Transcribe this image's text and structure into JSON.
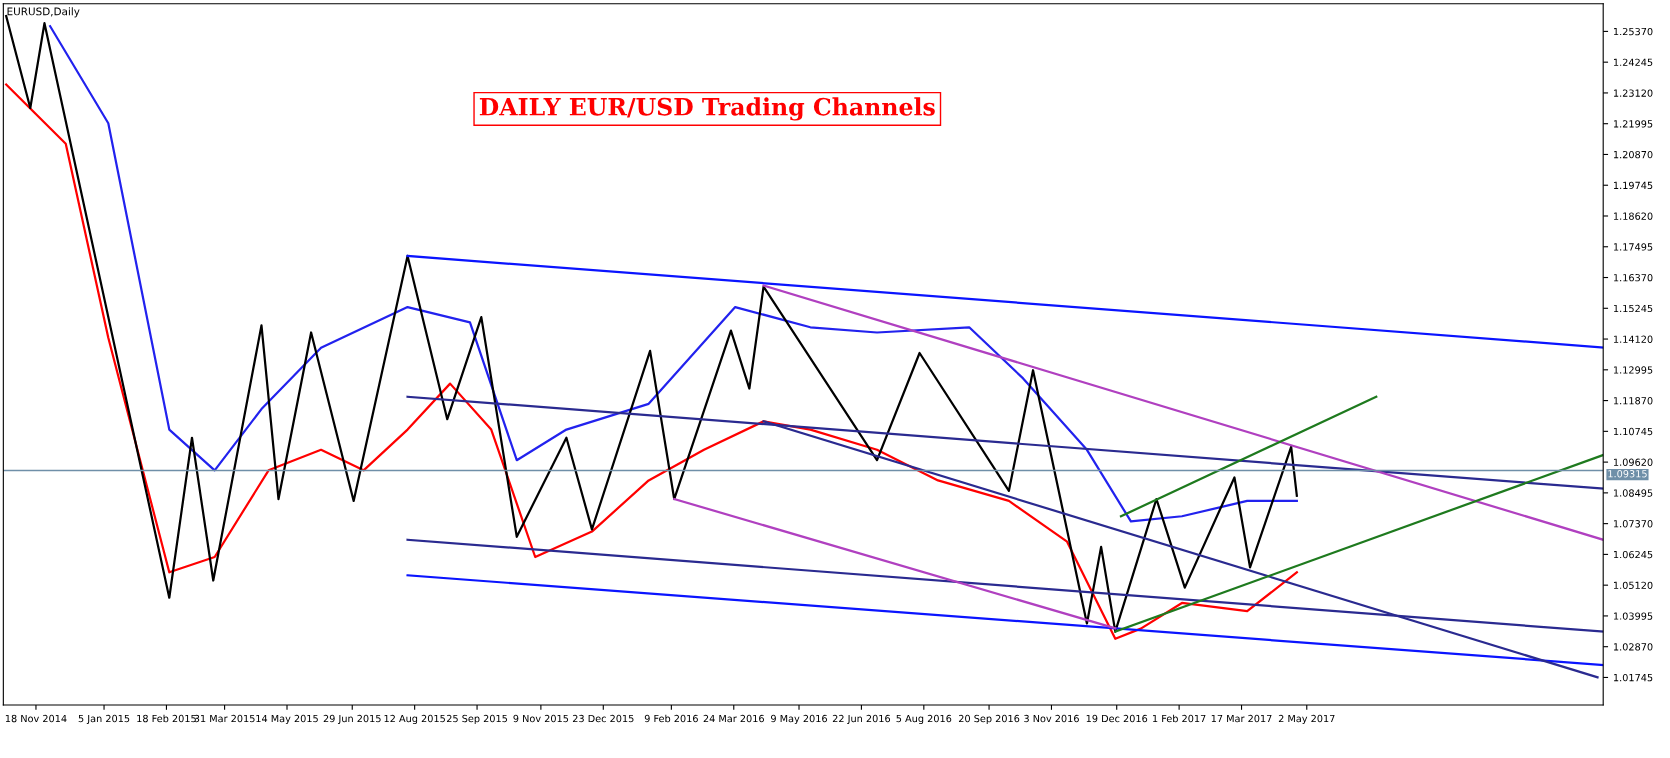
{
  "chart_data": {
    "type": "line",
    "title": "DAILY EUR/USD Trading Channels",
    "annotations": [
      "EURUSD,Daily"
    ],
    "xlim": [
      "2014-10-26",
      "2017-11-27"
    ],
    "ylim": [
      1.0074,
      1.2638
    ],
    "xticks": [
      {
        "value": "2014-11-18",
        "label": "18 Nov 2014"
      },
      {
        "value": "2015-01-05",
        "label": "5 Jan 2015"
      },
      {
        "value": "2015-02-18",
        "label": "18 Feb 2015"
      },
      {
        "value": "2015-03-31",
        "label": "31 Mar 2015"
      },
      {
        "value": "2015-05-14",
        "label": "14 May 2015"
      },
      {
        "value": "2015-06-29",
        "label": "29 Jun 2015"
      },
      {
        "value": "2015-08-12",
        "label": "12 Aug 2015"
      },
      {
        "value": "2015-09-25",
        "label": "25 Sep 2015"
      },
      {
        "value": "2015-11-09",
        "label": "9 Nov 2015"
      },
      {
        "value": "2015-12-23",
        "label": "23 Dec 2015"
      },
      {
        "value": "2016-02-09",
        "label": "9 Feb 2016"
      },
      {
        "value": "2016-03-24",
        "label": "24 Mar 2016"
      },
      {
        "value": "2016-05-09",
        "label": "9 May 2016"
      },
      {
        "value": "2016-06-22",
        "label": "22 Jun 2016"
      },
      {
        "value": "2016-08-05",
        "label": "5 Aug 2016"
      },
      {
        "value": "2016-09-20",
        "label": "20 Sep 2016"
      },
      {
        "value": "2016-11-03",
        "label": "3 Nov 2016"
      },
      {
        "value": "2016-12-19",
        "label": "19 Dec 2016"
      },
      {
        "value": "2017-02-01",
        "label": "1 Feb 2017"
      },
      {
        "value": "2017-03-17",
        "label": "17 Mar 2017"
      },
      {
        "value": "2017-05-02",
        "label": "2 May 2017"
      }
    ],
    "yticks": [
      {
        "value": 1.01745,
        "label": "1.01745"
      },
      {
        "value": 1.0287,
        "label": "1.02870"
      },
      {
        "value": 1.03995,
        "label": "1.03995"
      },
      {
        "value": 1.0512,
        "label": "1.05120"
      },
      {
        "value": 1.06245,
        "label": "1.06245"
      },
      {
        "value": 1.0737,
        "label": "1.07370"
      },
      {
        "value": 1.08495,
        "label": "1.08495"
      },
      {
        "value": 1.0962,
        "label": "1.09620"
      },
      {
        "value": 1.10745,
        "label": "1.10745"
      },
      {
        "value": 1.1187,
        "label": "1.11870"
      },
      {
        "value": 1.12995,
        "label": "1.12995"
      },
      {
        "value": 1.1412,
        "label": "1.14120"
      },
      {
        "value": 1.15245,
        "label": "1.15245"
      },
      {
        "value": 1.1637,
        "label": "1.16370"
      },
      {
        "value": 1.17495,
        "label": "1.17495"
      },
      {
        "value": 1.1862,
        "label": "1.18620"
      },
      {
        "value": 1.19745,
        "label": "1.19745"
      },
      {
        "value": 1.2087,
        "label": "1.20870"
      },
      {
        "value": 1.21995,
        "label": "1.21995"
      },
      {
        "value": 1.2312,
        "label": "1.23120"
      },
      {
        "value": 1.24245,
        "label": "1.24245"
      },
      {
        "value": 1.2537,
        "label": "1.25370"
      }
    ],
    "ref_lines": [
      {
        "axis": "y",
        "value": 1.09315,
        "label": "1.09315",
        "color": "#6f8fa8"
      }
    ],
    "grid": false,
    "legend": false,
    "marker": "none",
    "series": [
      {
        "color": "#ff0000",
        "x": [
          "2014-10-28",
          "2014-12-09",
          "2015-01-08",
          "2015-02-20",
          "2015-03-24",
          "2015-05-01",
          "2015-06-07",
          "2015-07-07",
          "2015-08-07",
          "2015-09-06",
          "2015-10-05",
          "2015-11-05",
          "2015-12-15",
          "2016-01-24",
          "2016-03-03",
          "2016-04-14",
          "2016-05-17",
          "2016-07-03",
          "2016-08-15",
          "2016-10-04",
          "2016-11-14",
          "2016-12-18",
          "2017-01-05",
          "2017-02-03",
          "2017-03-21",
          "2017-04-25"
        ],
        "values": [
          1.2343,
          1.2126,
          1.1417,
          1.0559,
          1.0615,
          1.0932,
          1.1007,
          1.0932,
          1.1081,
          1.1249,
          1.1081,
          1.0615,
          1.0708,
          1.0895,
          1.1007,
          1.1111,
          1.1081,
          1.1007,
          1.0895,
          1.082,
          1.0671,
          1.0316,
          1.0353,
          1.0447,
          1.0417,
          1.0559
        ]
      },
      {
        "color": "#2222ee",
        "x": [
          "2014-11-28",
          "2015-01-08",
          "2015-02-20",
          "2015-03-24",
          "2015-04-26",
          "2015-06-07",
          "2015-08-07",
          "2015-09-20",
          "2015-10-23",
          "2015-11-27",
          "2016-01-24",
          "2016-03-25",
          "2016-05-17",
          "2016-07-03",
          "2016-09-06",
          "2016-10-14",
          "2016-11-28",
          "2016-12-29",
          "2017-02-03",
          "2017-03-21",
          "2017-04-25"
        ],
        "values": [
          1.2556,
          1.2201,
          1.1081,
          1.0932,
          1.1156,
          1.138,
          1.1529,
          1.1473,
          1.0969,
          1.1081,
          1.1175,
          1.1529,
          1.1455,
          1.1436,
          1.1455,
          1.1268,
          1.1007,
          1.0745,
          1.0764,
          1.082,
          1.082
        ]
      },
      {
        "color": "#000000",
        "x": [
          "2014-10-28",
          "2014-11-14",
          "2014-11-24",
          "2015-02-20",
          "2015-03-08",
          "2015-03-23",
          "2015-04-26",
          "2015-05-08",
          "2015-05-31",
          "2015-06-30",
          "2015-08-07",
          "2015-09-04",
          "2015-09-28",
          "2015-10-23",
          "2015-11-27",
          "2015-12-15",
          "2016-01-25",
          "2016-02-11",
          "2016-03-22",
          "2016-04-04",
          "2016-04-14",
          "2016-07-03",
          "2016-08-02",
          "2016-10-04",
          "2016-10-21",
          "2016-11-28",
          "2016-12-08",
          "2016-12-18",
          "2017-01-16",
          "2017-02-05",
          "2017-03-12",
          "2017-03-23",
          "2017-04-21",
          "2017-04-25"
        ],
        "values": [
          1.2593,
          1.2257,
          1.2567,
          1.0466,
          1.1051,
          1.0529,
          1.1462,
          1.0827,
          1.1436,
          1.082,
          1.1716,
          1.1119,
          1.1492,
          1.0689,
          1.1051,
          1.0716,
          1.1369,
          1.0827,
          1.1443,
          1.1231,
          1.1604,
          1.0969,
          1.1361,
          1.0857,
          1.1298,
          1.0372,
          1.0652,
          1.0342,
          1.0827,
          1.0503,
          1.0906,
          1.0577,
          1.1018,
          1.0839
        ]
      },
      {
        "color": "#0a14ff",
        "x": [
          "2015-08-07",
          "2017-11-27"
        ],
        "values": [
          1.1716,
          1.1381
        ]
      },
      {
        "color": "#0a14ff",
        "x": [
          "2015-08-07",
          "2017-11-27"
        ],
        "values": [
          1.0548,
          1.022
        ]
      },
      {
        "color": "#2a2a90",
        "x": [
          "2015-08-07",
          "2017-11-27"
        ],
        "values": [
          1.1201,
          1.0865
        ]
      },
      {
        "color": "#2a2a90",
        "x": [
          "2015-08-07",
          "2017-11-27"
        ],
        "values": [
          1.0678,
          1.0342
        ]
      },
      {
        "color": "#2a2a90",
        "x": [
          "2016-04-14",
          "2017-11-23"
        ],
        "values": [
          1.1111,
          1.0175
        ]
      },
      {
        "color": "#b040c0",
        "x": [
          "2016-04-14",
          "2017-11-27"
        ],
        "values": [
          1.1608,
          1.0678
        ]
      },
      {
        "color": "#b040c0",
        "x": [
          "2016-02-11",
          "2016-12-18"
        ],
        "values": [
          1.0827,
          1.0354
        ]
      },
      {
        "color": "#1e7a1e",
        "x": [
          "2016-12-22",
          "2017-06-20"
        ],
        "values": [
          1.0764,
          1.1201
        ]
      },
      {
        "color": "#1e7a1e",
        "x": [
          "2016-12-18",
          "2017-11-27"
        ],
        "values": [
          1.0342,
          1.0988
        ]
      }
    ]
  }
}
